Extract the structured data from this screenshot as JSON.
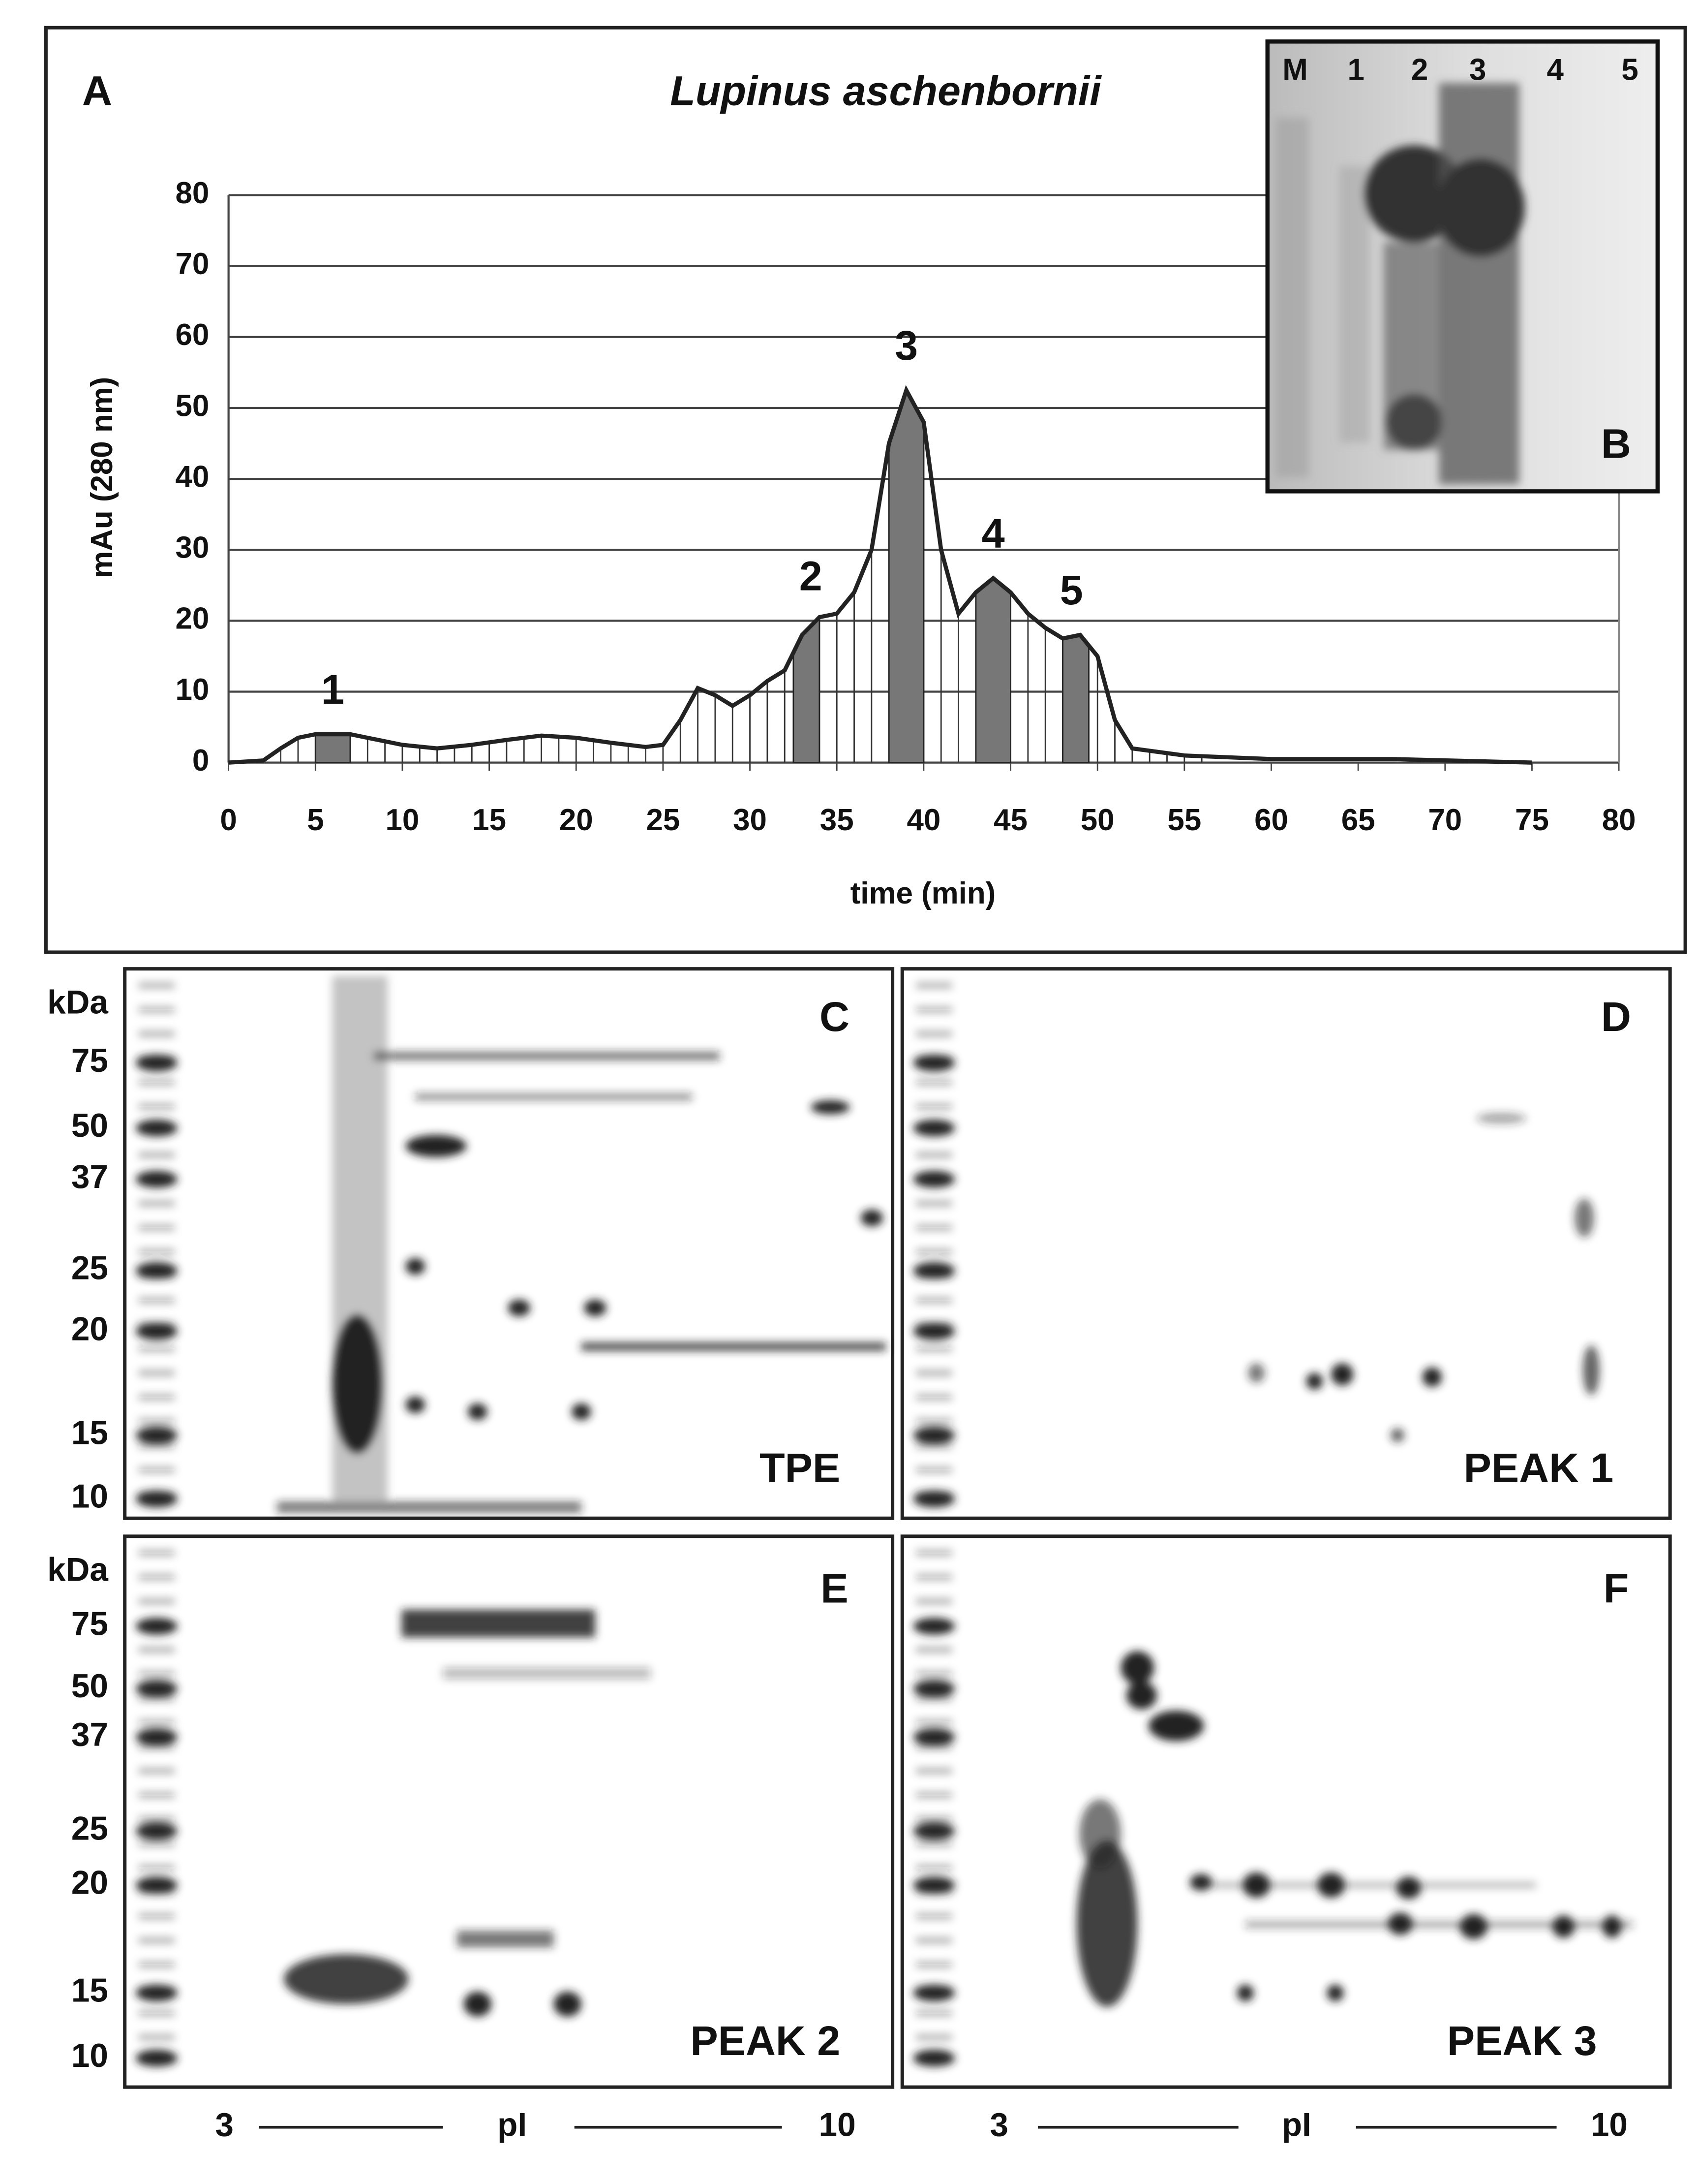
{
  "chart_data": {
    "type": "line",
    "panel_label": "A",
    "title": "Lupinus aschenbornii",
    "x_label": "time (min)",
    "y_label": "mAu (280 nm)",
    "x": [
      0,
      2,
      3,
      4,
      5,
      7,
      8,
      10,
      12,
      14,
      16,
      18,
      20,
      22,
      24,
      25,
      26,
      27,
      28,
      29,
      30,
      31,
      32,
      33,
      34,
      35,
      36,
      37,
      38,
      39,
      40,
      41,
      42,
      43,
      44,
      45,
      46,
      47,
      48,
      49,
      50,
      51,
      52,
      55,
      60,
      67,
      75
    ],
    "values": [
      0,
      0.3,
      2,
      3.5,
      4,
      4,
      3.5,
      2.5,
      2,
      2.5,
      3.2,
      3.8,
      3.5,
      2.8,
      2.2,
      2.5,
      6,
      10.5,
      9.5,
      8,
      9.5,
      11.5,
      13,
      18,
      20.5,
      21,
      24,
      30,
      45,
      52.5,
      48,
      30,
      21,
      24,
      26,
      24,
      21,
      19,
      17.5,
      18,
      15,
      6,
      2,
      1,
      0.5,
      0.5,
      0
    ],
    "color": "#222222",
    "shaded_fractions": [
      [
        5,
        7
      ],
      [
        32.5,
        34
      ],
      [
        38,
        40
      ],
      [
        43,
        45
      ],
      [
        48,
        49.5
      ]
    ],
    "annotations": [
      {
        "text": "1",
        "x": 6,
        "y": 4
      },
      {
        "text": "2",
        "x": 33.5,
        "y": 20
      },
      {
        "text": "3",
        "x": 39,
        "y": 52.5
      },
      {
        "text": "4",
        "x": 44,
        "y": 26
      },
      {
        "text": "5",
        "x": 48.5,
        "y": 18
      }
    ],
    "xlim": [
      0,
      80
    ],
    "xticks": [
      0,
      5,
      10,
      15,
      20,
      25,
      30,
      35,
      40,
      45,
      50,
      55,
      60,
      65,
      70,
      75,
      80
    ],
    "ylim": [
      0,
      80
    ],
    "yticks": [
      0,
      10,
      20,
      30,
      40,
      50,
      60,
      70,
      80
    ],
    "grid": true
  },
  "inset": {
    "panel_label": "B",
    "lanes": [
      "M",
      "1",
      "2",
      "3",
      "4",
      "5"
    ]
  },
  "gels": {
    "unit": "kDa",
    "markers": [
      "75",
      "50",
      "37",
      "25",
      "20",
      "15",
      "10"
    ],
    "axis": {
      "start": "3",
      "label": "pI",
      "end": "10"
    },
    "panels": [
      {
        "label": "C",
        "sample": "TPE"
      },
      {
        "label": "D",
        "sample": "PEAK 1"
      },
      {
        "label": "E",
        "sample": "PEAK 2"
      },
      {
        "label": "F",
        "sample": "PEAK 3"
      }
    ]
  }
}
